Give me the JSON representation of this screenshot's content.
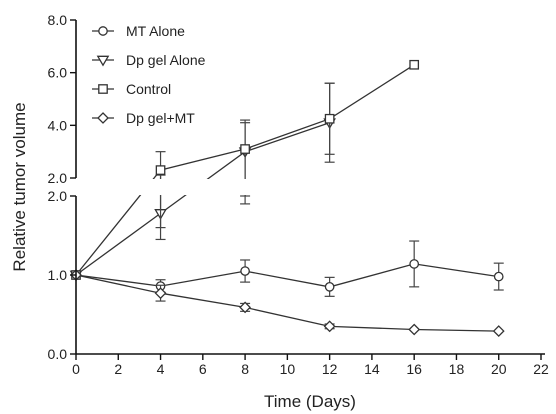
{
  "chart_data": {
    "type": "line",
    "xlabel": "Time (Days)",
    "ylabel": "Relative tumor volume",
    "xlim": [
      0,
      22
    ],
    "x_ticks": [
      "0",
      "2",
      "4",
      "6",
      "8",
      "10",
      "12",
      "14",
      "16",
      "18",
      "20",
      "22"
    ],
    "y_axis_broken": true,
    "y_lower_range": [
      0,
      2
    ],
    "y_lower_ticks": [
      "0.0",
      "1.0",
      "2.0"
    ],
    "y_upper_range": [
      2,
      8
    ],
    "y_upper_ticks": [
      "2.0",
      "4.0",
      "6.0",
      "8.0"
    ],
    "legend_position": "top-left",
    "series": [
      {
        "name": "MT Alone",
        "marker": "circle",
        "x": [
          0,
          4,
          8,
          12,
          16,
          20
        ],
        "y": [
          1.0,
          0.86,
          1.05,
          0.85,
          1.14,
          0.98
        ],
        "err": [
          0.0,
          0.08,
          0.14,
          0.12,
          0.29,
          0.17
        ]
      },
      {
        "name": "Dp gel Alone",
        "marker": "triangle-down",
        "x": [
          0,
          4,
          8,
          12
        ],
        "y": [
          1.0,
          1.78,
          3.0,
          4.1
        ],
        "err": [
          0.0,
          0.33,
          1.1,
          1.5
        ]
      },
      {
        "name": "Control",
        "marker": "square",
        "x": [
          0,
          4,
          8,
          12,
          16
        ],
        "y": [
          1.0,
          2.3,
          3.1,
          4.25,
          6.3
        ],
        "err": [
          0.0,
          0.7,
          1.1,
          1.35,
          0.0
        ]
      },
      {
        "name": "Dp gel+MT",
        "marker": "diamond",
        "x": [
          0,
          4,
          8,
          12,
          16,
          20
        ],
        "y": [
          1.0,
          0.77,
          0.59,
          0.35,
          0.31,
          0.29
        ],
        "err": [
          0.0,
          0.1,
          0.05,
          0.03,
          0.0,
          0.0
        ]
      }
    ]
  }
}
